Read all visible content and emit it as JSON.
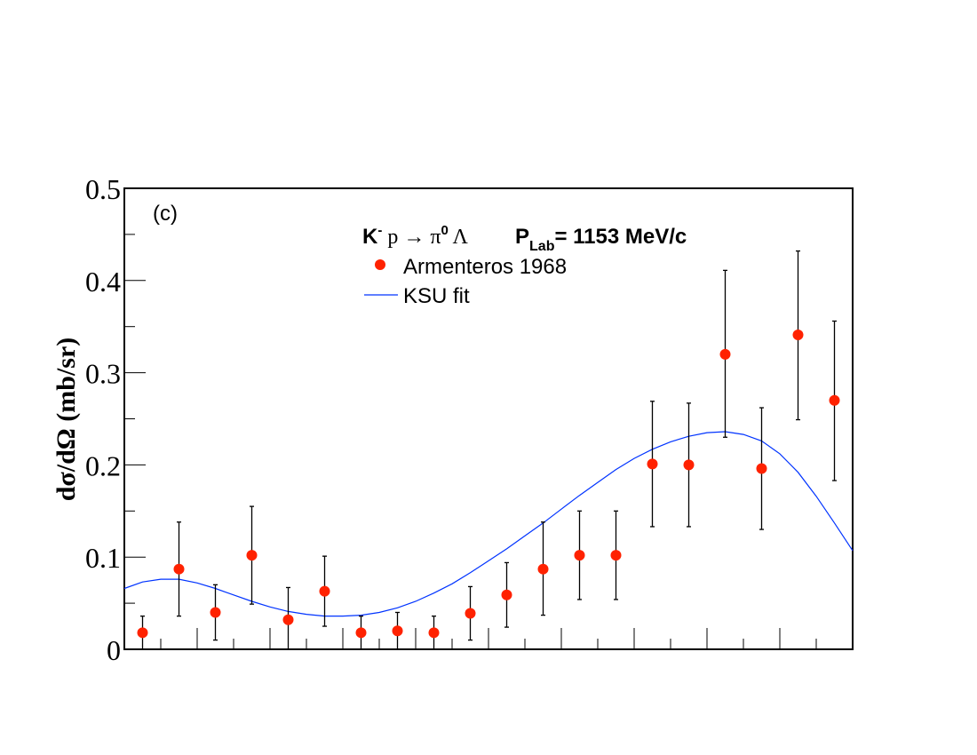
{
  "chart_data": {
    "type": "scatter",
    "panel_label": "(c)",
    "ylabel": "dσ/dΩ (mb/sr)",
    "xlabel": "",
    "xlim": [
      -1,
      1
    ],
    "ylim": [
      0,
      0.5
    ],
    "yticks": [
      "0",
      "0.1",
      "0.2",
      "0.3",
      "0.4",
      "0.5"
    ],
    "reaction": {
      "k": "K",
      "k_sup": "-",
      "p_arrow": " p → π",
      "pi_sup": "0",
      "lambda": " Λ",
      "plab_p": "P",
      "plab_sub": "Lab",
      "plab_rest": "= 1153 MeV/c"
    },
    "legend": {
      "placement": "top-center",
      "entries": [
        "Armenteros 1968",
        "KSU fit"
      ]
    },
    "colors": {
      "data": "#ff2200",
      "fit": "#0033ff",
      "axis": "#000000"
    },
    "series": [
      {
        "name": "Armenteros 1968",
        "kind": "points_with_errors",
        "x": [
          -0.95,
          -0.85,
          -0.75,
          -0.65,
          -0.55,
          -0.45,
          -0.35,
          -0.25,
          -0.15,
          -0.05,
          0.05,
          0.15,
          0.25,
          0.35,
          0.45,
          0.55,
          0.65,
          0.75,
          0.85,
          0.95
        ],
        "y": [
          0.018,
          0.087,
          0.04,
          0.102,
          0.032,
          0.063,
          0.018,
          0.02,
          0.018,
          0.039,
          0.059,
          0.087,
          0.102,
          0.102,
          0.201,
          0.2,
          0.32,
          0.196,
          0.341,
          0.27
        ],
        "err_low": [
          0.018,
          0.051,
          0.03,
          0.053,
          0.032,
          0.038,
          0.018,
          0.02,
          0.018,
          0.029,
          0.035,
          0.05,
          0.048,
          0.048,
          0.068,
          0.067,
          0.09,
          0.066,
          0.092,
          0.087
        ],
        "err_high": [
          0.018,
          0.051,
          0.03,
          0.053,
          0.035,
          0.038,
          0.018,
          0.02,
          0.018,
          0.029,
          0.035,
          0.051,
          0.048,
          0.048,
          0.068,
          0.067,
          0.091,
          0.066,
          0.091,
          0.086
        ]
      },
      {
        "name": "KSU fit",
        "kind": "line",
        "x": [
          -1.0,
          -0.95,
          -0.9,
          -0.85,
          -0.8,
          -0.75,
          -0.7,
          -0.65,
          -0.6,
          -0.55,
          -0.5,
          -0.45,
          -0.4,
          -0.35,
          -0.3,
          -0.25,
          -0.2,
          -0.15,
          -0.1,
          -0.05,
          0.0,
          0.05,
          0.1,
          0.15,
          0.2,
          0.25,
          0.3,
          0.35,
          0.4,
          0.45,
          0.5,
          0.55,
          0.6,
          0.65,
          0.7,
          0.75,
          0.8,
          0.85,
          0.9,
          0.95,
          1.0
        ],
        "y": [
          0.066,
          0.073,
          0.076,
          0.076,
          0.072,
          0.066,
          0.059,
          0.052,
          0.046,
          0.041,
          0.038,
          0.036,
          0.036,
          0.037,
          0.04,
          0.045,
          0.052,
          0.061,
          0.071,
          0.083,
          0.096,
          0.109,
          0.123,
          0.137,
          0.152,
          0.167,
          0.181,
          0.195,
          0.207,
          0.217,
          0.225,
          0.231,
          0.235,
          0.236,
          0.233,
          0.226,
          0.212,
          0.192,
          0.166,
          0.137,
          0.107
        ]
      }
    ]
  }
}
